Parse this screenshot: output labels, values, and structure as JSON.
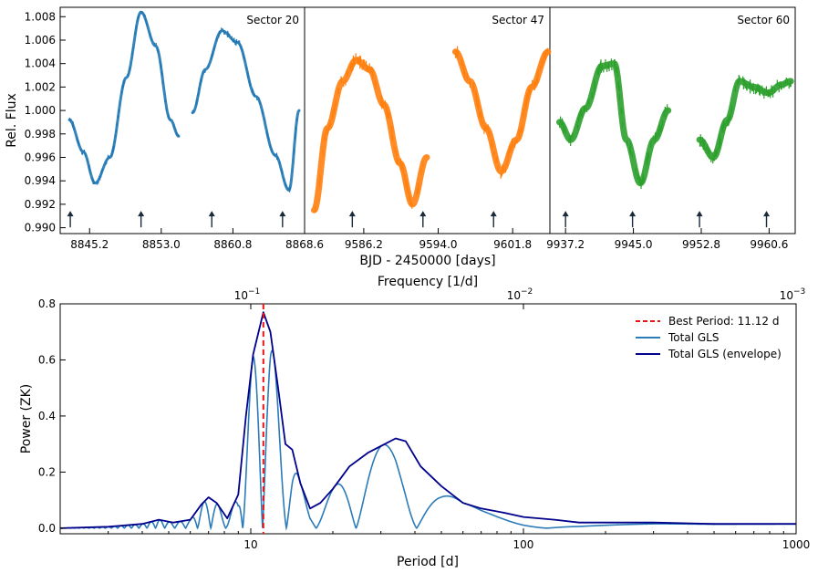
{
  "colors": {
    "sector20": "#1f77b4",
    "sector47": "#ff7f0e",
    "sector60": "#2ca02c",
    "best_period": "#ee1111",
    "gls": "#2b7bb9",
    "envelope": "#00008b"
  },
  "top": {
    "ylabel": "Rel. Flux",
    "xlabel": "BJD - 2450000 [days]",
    "ylim": [
      0.9895,
      1.0088
    ],
    "yticks": [
      "0.990",
      "0.992",
      "0.994",
      "0.996",
      "0.998",
      "1.000",
      "1.002",
      "1.004",
      "1.006",
      "1.008"
    ],
    "arrow_flux": 0.9905
  },
  "chart_data": [
    {
      "type": "scatter",
      "title": "Sector 20",
      "xlim": [
        8842.0,
        8868.6
      ],
      "xticks": [
        "8845.2",
        "8853.0",
        "8860.8",
        "8868.6"
      ],
      "segments": [
        [
          8843.0,
          8854.9
        ],
        [
          8856.4,
          8868.0
        ]
      ],
      "curve_x": [
        8843.0,
        8844.5,
        8845.8,
        8847.4,
        8849.2,
        8850.8,
        8852.4,
        8854.0,
        8854.9,
        8856.4,
        8857.8,
        8859.6,
        8861.3,
        8863.3,
        8865.4,
        8866.9,
        8868.0
      ],
      "curve_y": [
        0.9992,
        0.9965,
        0.9938,
        0.996,
        1.0028,
        1.0084,
        1.0055,
        0.9992,
        0.9978,
        0.9998,
        1.0035,
        1.0068,
        1.0058,
        1.0012,
        0.9962,
        0.9932,
        1.0
      ],
      "arrows_x": [
        8843.1,
        8850.8,
        8858.5,
        8866.2
      ]
    },
    {
      "type": "scatter",
      "title": "Sector 47",
      "xlim": [
        9580.0,
        9605.7
      ],
      "xticks": [
        "9586.2",
        "9594.0",
        "9601.8"
      ],
      "segments": [
        [
          9581.0,
          9592.8
        ],
        [
          9595.8,
          9605.5
        ]
      ],
      "curve_x": [
        9581.0,
        9582.4,
        9584.0,
        9585.4,
        9586.8,
        9588.3,
        9590.0,
        9591.3,
        9592.8,
        9595.8,
        9597.3,
        9599.0,
        9600.6,
        9602.2,
        9603.8,
        9605.5
      ],
      "curve_y": [
        0.9915,
        0.9985,
        1.0025,
        1.0043,
        1.0035,
        1.0005,
        0.9955,
        0.992,
        0.996,
        1.005,
        1.0025,
        0.9985,
        0.9948,
        0.9975,
        1.002,
        1.005
      ],
      "arrows_x": [
        9585.0,
        9592.4,
        9599.8
      ]
    },
    {
      "type": "scatter",
      "title": "Sector 60",
      "xlim": [
        9935.4,
        9963.6
      ],
      "xticks": [
        "9937.2",
        "9945.0",
        "9952.8",
        "9960.6"
      ],
      "segments": [
        [
          9936.5,
          9949.0
        ],
        [
          9952.6,
          9963.1
        ]
      ],
      "curve_x": [
        9936.5,
        9937.8,
        9939.5,
        9941.4,
        9942.8,
        9944.2,
        9945.8,
        9947.4,
        9949.0,
        9952.6,
        9954.2,
        9955.8,
        9957.2,
        9958.8,
        9960.5,
        9962.0,
        9963.1
      ],
      "curve_y": [
        0.999,
        0.9975,
        1.0002,
        1.0038,
        1.004,
        0.9975,
        0.9938,
        0.9975,
        1.0,
        0.9975,
        0.996,
        0.9992,
        1.0025,
        1.002,
        1.0015,
        1.0022,
        1.0025
      ],
      "arrows_x": [
        9937.2,
        9944.9,
        9952.6,
        9960.3
      ]
    },
    {
      "type": "line",
      "ylabel": "Power (ZK)",
      "xlabel": "Period [d]",
      "top_xlabel": "Frequency [1/d]",
      "xscale": "log",
      "xlim": [
        2,
        1000
      ],
      "ylim": [
        -0.02,
        0.8
      ],
      "xticks": [
        "10",
        "100",
        "1000"
      ],
      "yticks": [
        "0.0",
        "0.2",
        "0.4",
        "0.6",
        "0.8"
      ],
      "top_ticks": [
        {
          "period": 10,
          "label_base": "10",
          "label_exp": "−1"
        },
        {
          "period": 100,
          "label_base": "10",
          "label_exp": "−2"
        },
        {
          "period": 1000,
          "label_base": "10",
          "label_exp": "−3"
        }
      ],
      "best_period": 11.12,
      "legend": [
        "Best Period: 11.12 d",
        "Total GLS",
        "Total GLS (envelope)"
      ],
      "envelope": {
        "x": [
          2,
          3,
          4,
          4.6,
          5.2,
          6.0,
          6.6,
          7.0,
          7.5,
          8.2,
          9.0,
          9.6,
          10.2,
          11.12,
          11.8,
          12.6,
          13.4,
          14.2,
          15.2,
          16.5,
          18.0,
          20.0,
          23.0,
          27.0,
          31.0,
          34.0,
          37.0,
          42.0,
          50.0,
          60.0,
          70.0,
          85.0,
          100.0,
          130.0,
          160.0,
          200.0,
          300.0,
          500.0,
          1000.0
        ],
        "y": [
          0.0,
          0.005,
          0.015,
          0.03,
          0.02,
          0.03,
          0.085,
          0.11,
          0.09,
          0.035,
          0.12,
          0.4,
          0.62,
          0.77,
          0.7,
          0.5,
          0.3,
          0.28,
          0.16,
          0.07,
          0.09,
          0.14,
          0.22,
          0.27,
          0.3,
          0.32,
          0.31,
          0.22,
          0.15,
          0.09,
          0.07,
          0.055,
          0.04,
          0.03,
          0.02,
          0.02,
          0.02,
          0.015,
          0.015
        ]
      }
    }
  ]
}
